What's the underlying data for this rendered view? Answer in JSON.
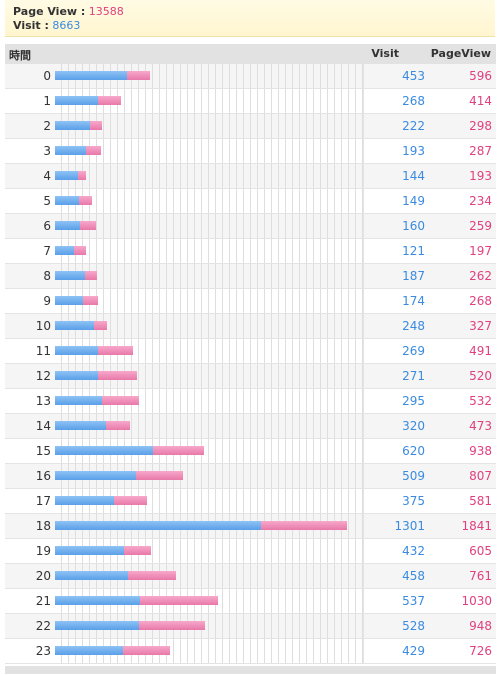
{
  "summary": {
    "page_view_label": "Page View :",
    "page_view_value": "13588",
    "visit_label": "Visit :",
    "visit_value": "8663"
  },
  "table": {
    "headers": {
      "time": "時間",
      "visit": "Visit",
      "pageview": "PageView"
    },
    "scale_max": 1841
  },
  "colors": {
    "visit": "#3a8be0",
    "pageview": "#e0407f"
  },
  "chart_data": {
    "type": "bar",
    "categories": [
      "0",
      "1",
      "2",
      "3",
      "4",
      "5",
      "6",
      "7",
      "8",
      "9",
      "10",
      "11",
      "12",
      "13",
      "14",
      "15",
      "16",
      "17",
      "18",
      "19",
      "20",
      "21",
      "22",
      "23"
    ],
    "series": [
      {
        "name": "Visit",
        "values": [
          453,
          268,
          222,
          193,
          144,
          149,
          160,
          121,
          187,
          174,
          248,
          269,
          271,
          295,
          320,
          620,
          509,
          375,
          1301,
          432,
          458,
          537,
          528,
          429
        ]
      },
      {
        "name": "PageView",
        "values": [
          596,
          414,
          298,
          287,
          193,
          234,
          259,
          197,
          262,
          268,
          327,
          491,
          520,
          532,
          473,
          938,
          807,
          581,
          1841,
          605,
          761,
          1030,
          948,
          726
        ]
      }
    ]
  }
}
